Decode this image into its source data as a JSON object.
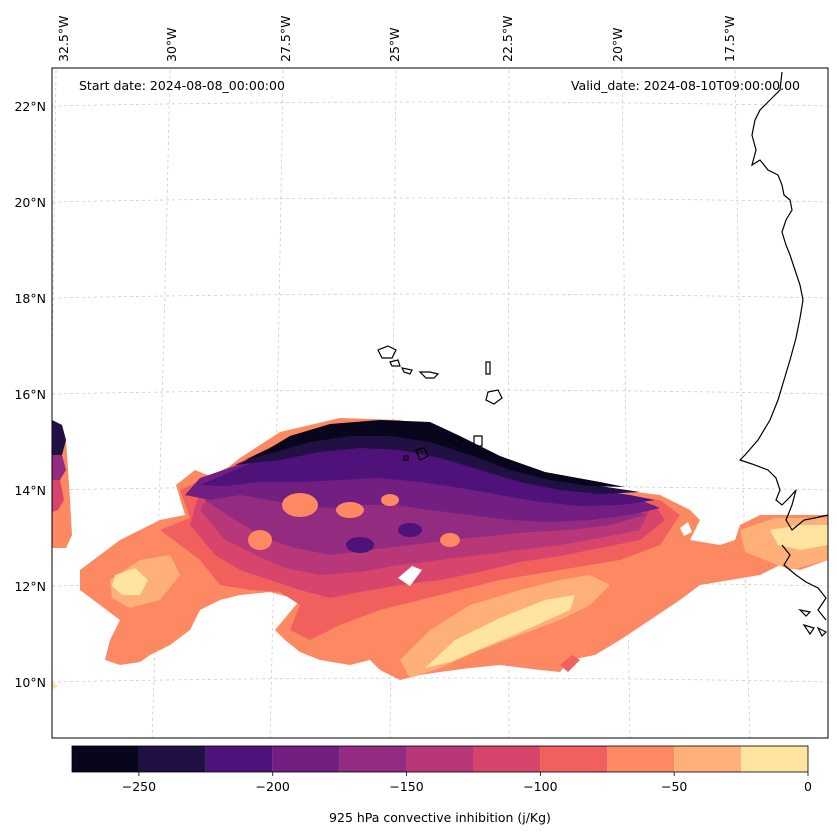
{
  "map": {
    "start_date": "Start date: 2024-08-08_00:00:00",
    "valid_date": "Valid_date: 2024-08-10T09:00:00.00",
    "lon_labels": [
      "32.5°W",
      "30°W",
      "27.5°W",
      "25°W",
      "22.5°W",
      "20°W",
      "17.5°W"
    ],
    "lat_labels": [
      "22°N",
      "20°N",
      "18°N",
      "16°N",
      "14°N",
      "12°N",
      "10°N"
    ],
    "variable": "925 hPa convective inhibition (j/Kg)"
  },
  "colorbar": {
    "label": "925 hPa convective inhibition (j/Kg)",
    "tick_labels": [
      "−250",
      "−200",
      "−150",
      "−100",
      "−50",
      "0"
    ],
    "levels": [
      -275,
      -250,
      -225,
      -200,
      -175,
      -150,
      -125,
      -100,
      -75,
      -50,
      -25,
      0
    ],
    "colors": [
      "#07061c",
      "#211044",
      "#4f127b",
      "#721f81",
      "#932b80",
      "#b73779",
      "#d8456c",
      "#f1605d",
      "#fc8961",
      "#feb078",
      "#fee3a1"
    ]
  }
}
